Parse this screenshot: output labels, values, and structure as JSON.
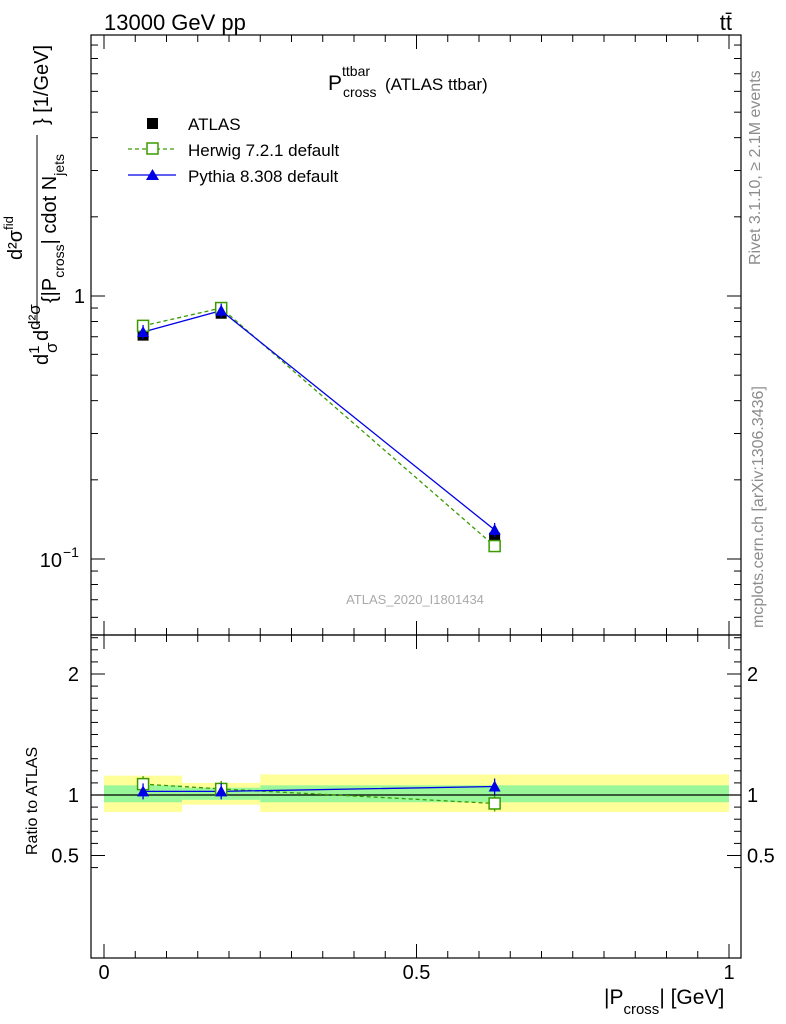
{
  "header": {
    "left": "13000 GeV pp",
    "right": "tt̄"
  },
  "side_labels": {
    "rivet": "Rivet 3.1.10, ≥ 2.1M events",
    "mcplots": "mcplots.cern.ch [arXiv:1306.3436]"
  },
  "plot": {
    "title_main": "P",
    "title_sup": "ttbar",
    "title_sub": "cross",
    "title_rest": "(ATLAS ttbar)",
    "watermark": "ATLAS_2020_I1801434",
    "ylabel_main": "d²σ",
    "ylabel_top": "d²σ",
    "ylabel_top_sup": "fid",
    "ylabel_unit": "} [1/GeV]",
    "ylabel_frac_num": "1",
    "ylabel_frac_den": "σ",
    "ylabel_d": "d",
    "ylabel_mid": "{|P",
    "ylabel_mid_sub": "cross",
    "ylabel_mid_rest": "| cdot N",
    "ylabel_mid_sub2": "jets",
    "ratio_ylabel": "Ratio to ATLAS",
    "xlabel_main": "|P",
    "xlabel_sub": "cross",
    "xlabel_rest": "| [GeV]",
    "yticks_main": [
      "1",
      "10"
    ],
    "ytick_exp": "−1",
    "yticks_ratio": [
      "2",
      "1",
      "0.5"
    ],
    "xticks": [
      "0",
      "0.5",
      "1"
    ]
  },
  "chart_data": [
    {
      "type": "line",
      "panel": "main",
      "ylog": true,
      "xlim": [
        0,
        1
      ],
      "ylim": [
        0.055,
        9.5
      ],
      "series": [
        {
          "name": "ATLAS",
          "color": "#000000",
          "marker": "filled-square",
          "x": [
            0.0625,
            0.1875,
            0.625
          ],
          "y": [
            0.71,
            0.86,
            0.12
          ]
        },
        {
          "name": "Herwig 7.2.1 default",
          "color": "#3a9a00",
          "marker": "open-square",
          "dashed": true,
          "x": [
            0.0625,
            0.1875,
            0.625
          ],
          "y": [
            0.77,
            0.9,
            0.112
          ]
        },
        {
          "name": "Pythia 8.308 default",
          "color": "#0000e6",
          "marker": "filled-triangle",
          "x": [
            0.0625,
            0.1875,
            0.625
          ],
          "y": [
            0.73,
            0.88,
            0.129
          ]
        }
      ],
      "legend_position": "top-left"
    },
    {
      "type": "line",
      "panel": "ratio",
      "xlim": [
        0,
        1
      ],
      "ylim": [
        0.4,
        2.45
      ],
      "bands": {
        "edges": [
          0,
          0.125,
          0.25,
          1
        ],
        "inner_low": [
          0.94,
          0.96,
          0.94
        ],
        "inner_high": [
          1.08,
          1.06,
          1.08
        ],
        "outer_low": [
          0.86,
          0.92,
          0.86
        ],
        "outer_high": [
          1.16,
          1.1,
          1.17
        ],
        "inner_color": "#99f799",
        "outer_color": "#ffff99"
      },
      "series": [
        {
          "name": "Herwig 7.2.1 default",
          "color": "#3a9a00",
          "marker": "open-square",
          "dashed": true,
          "x": [
            0.0625,
            0.1875,
            0.625
          ],
          "y": [
            1.09,
            1.05,
            0.93
          ]
        },
        {
          "name": "Pythia 8.308 default",
          "color": "#0000e6",
          "marker": "filled-triangle",
          "x": [
            0.0625,
            0.1875,
            0.625
          ],
          "y": [
            1.03,
            1.03,
            1.07
          ]
        }
      ]
    }
  ]
}
